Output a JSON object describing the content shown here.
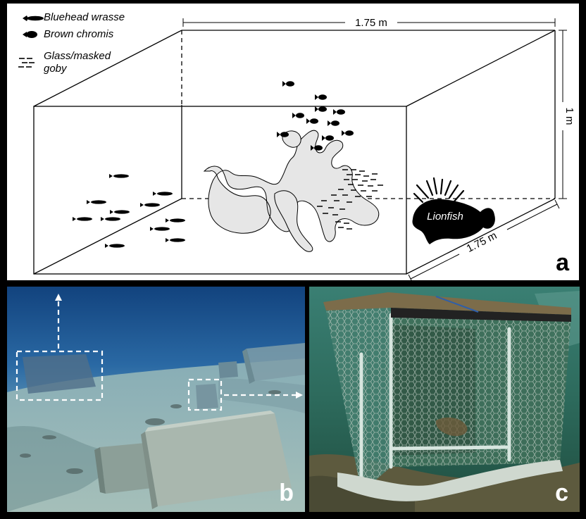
{
  "legend": [
    {
      "label": "Bluehead wrasse",
      "icon": "wrasse-icon"
    },
    {
      "label": "Brown chromis",
      "icon": "chromis-icon"
    },
    {
      "label": "Glass/masked goby",
      "icon": "goby-icon"
    }
  ],
  "dimensions": {
    "width": "1.75 m",
    "height": "1 m",
    "depth": "1.75 m"
  },
  "predator_label": "Lionfish",
  "panel_labels": {
    "a": "a",
    "b": "b",
    "c": "c"
  },
  "colors": {
    "coral": "#e6e6e6",
    "water_deep": "#1a4f8c",
    "water_green": "#2f6f5e"
  }
}
